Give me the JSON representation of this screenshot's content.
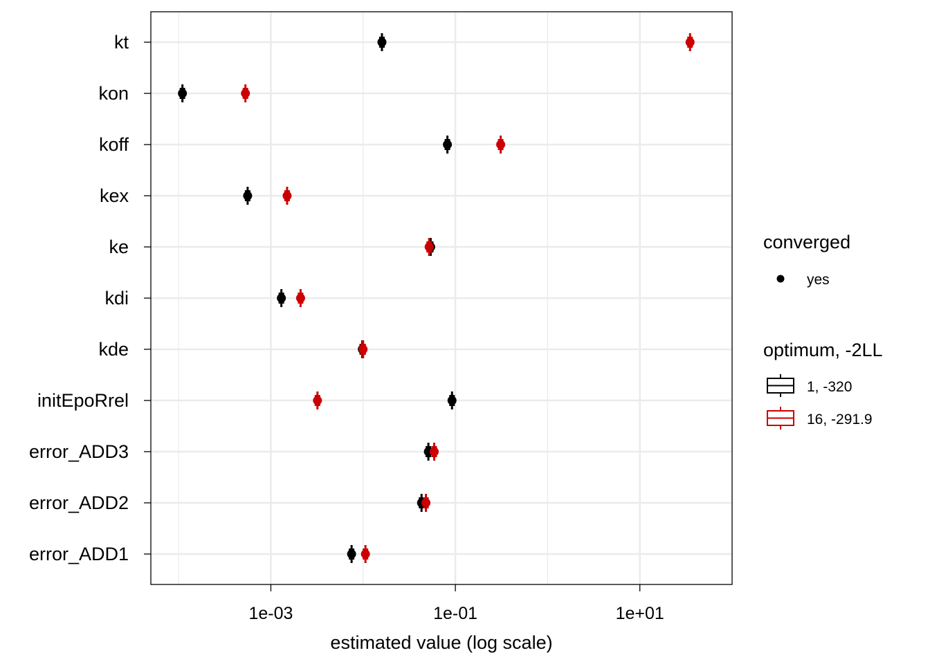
{
  "chart_data": {
    "type": "scatter",
    "xlabel": "estimated value (log scale)",
    "x_scale": "log10",
    "xlim": [
      5e-05,
      100.0
    ],
    "x_ticks": [
      "1e-03",
      "1e-01",
      "1e+01"
    ],
    "categories": [
      "kt",
      "kon",
      "koff",
      "kex",
      "ke",
      "kdi",
      "kde",
      "initEpoRrel",
      "error_ADD3",
      "error_ADD2",
      "error_ADD1"
    ],
    "series": [
      {
        "name": "1, -320",
        "color": "#000000",
        "values": [
          0.016,
          0.00011,
          0.082,
          0.00056,
          0.054,
          0.0013,
          0.0098,
          0.092,
          0.051,
          0.043,
          0.0075
        ]
      },
      {
        "name": "16, -291.9",
        "color": "#CC0000",
        "values": [
          35,
          0.00053,
          0.31,
          0.0015,
          0.052,
          0.0021,
          0.01,
          0.0032,
          0.059,
          0.048,
          0.0106
        ]
      }
    ],
    "legend": {
      "position": "right",
      "converged": {
        "title": "converged",
        "items": [
          "yes"
        ]
      },
      "optimum": {
        "title": "optimum, -2LL",
        "items": [
          "1, -320",
          "16, -291.9"
        ]
      }
    },
    "grid": true
  }
}
